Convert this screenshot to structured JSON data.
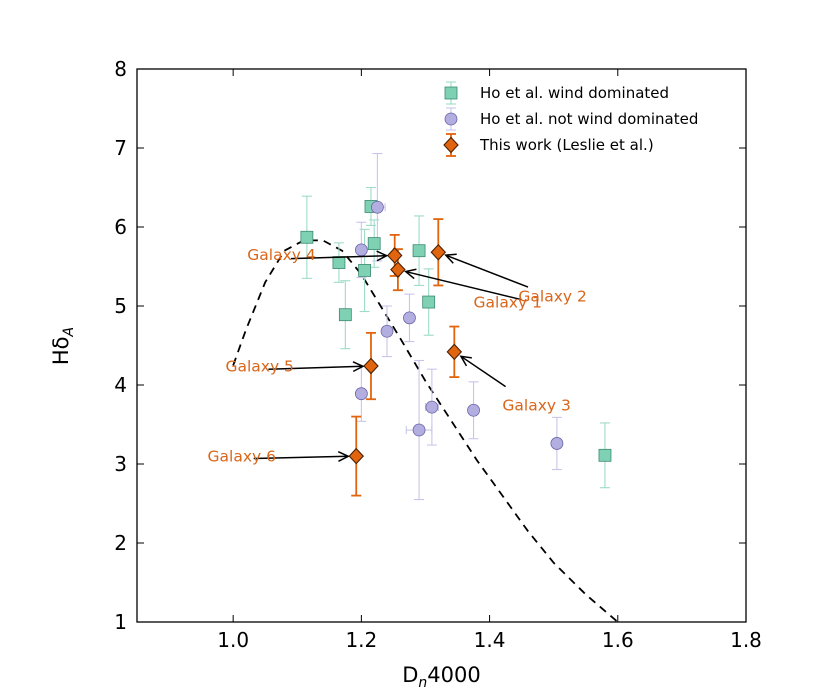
{
  "chart_data": {
    "type": "scatter",
    "xlabel_main": "D",
    "xlabel_sub": "n",
    "xlabel_tail": "4000",
    "ylabel_main": "Hδ",
    "ylabel_sub": "A",
    "xlim": [
      0.85,
      1.8
    ],
    "ylim": [
      1,
      8
    ],
    "xticks": [
      1.0,
      1.2,
      1.4,
      1.6,
      1.8
    ],
    "xtick_labels": [
      "1.0",
      "1.2",
      "1.4",
      "1.6",
      "1.8"
    ],
    "yticks": [
      1,
      2,
      3,
      4,
      5,
      6,
      7,
      8
    ],
    "ytick_labels": [
      "1",
      "2",
      "3",
      "4",
      "5",
      "6",
      "7",
      "8"
    ],
    "legend_position": "top-right",
    "colors": {
      "wind": "#7fd1b3",
      "wind_edge": "#3d8a72",
      "wind_err": "#9ddcc6",
      "notwind": "#b3aee0",
      "notwind_edge": "#6a63a8",
      "notwind_err": "#c9c5ea",
      "thiswork": "#e1650f",
      "thiswork_edge": "#4a1f00",
      "annotation": "#d9661a",
      "curve": "#000000"
    },
    "series": [
      {
        "name": "Ho et al. wind dominated",
        "marker": "square",
        "points": [
          {
            "x": 1.115,
            "y": 5.87,
            "yerr": 0.52
          },
          {
            "x": 1.165,
            "y": 5.55,
            "yerr": 0.25
          },
          {
            "x": 1.175,
            "y": 4.89,
            "yerr": 0.43
          },
          {
            "x": 1.205,
            "y": 5.45,
            "yerr": 0.52
          },
          {
            "x": 1.215,
            "y": 6.26,
            "yerr": 0.24
          },
          {
            "x": 1.22,
            "y": 5.79,
            "yerr": 0.3
          },
          {
            "x": 1.29,
            "y": 5.7,
            "yerr": 0.44
          },
          {
            "x": 1.305,
            "y": 5.05,
            "yerr": 0.42
          },
          {
            "x": 1.58,
            "y": 3.11,
            "yerr": 0.41
          }
        ]
      },
      {
        "name": "Ho et al. not wind dominated",
        "marker": "circle",
        "points": [
          {
            "x": 1.2,
            "y": 3.89,
            "yerr": 0.35
          },
          {
            "x": 1.2,
            "y": 5.71,
            "yerr": 0.35
          },
          {
            "x": 1.225,
            "y": 6.25,
            "yerr": 0.68,
            "xerr": 0.012
          },
          {
            "x": 1.24,
            "y": 4.68,
            "yerr": 0.32
          },
          {
            "x": 1.275,
            "y": 4.85,
            "yerr": 0.3
          },
          {
            "x": 1.29,
            "y": 3.43,
            "yerr": 0.88,
            "xerr": 0.02
          },
          {
            "x": 1.31,
            "y": 3.72,
            "yerr": 0.48,
            "xerr": 0.01
          },
          {
            "x": 1.375,
            "y": 3.68,
            "yerr": 0.36
          },
          {
            "x": 1.505,
            "y": 3.26,
            "yerr": 0.33
          }
        ]
      },
      {
        "name": "This work (Leslie et al.)",
        "marker": "diamond",
        "points": [
          {
            "x": 1.252,
            "y": 5.64,
            "yerr": 0.26
          },
          {
            "x": 1.32,
            "y": 5.68,
            "yerr": 0.42
          },
          {
            "x": 1.257,
            "y": 5.46,
            "yerr": 0.26
          },
          {
            "x": 1.345,
            "y": 4.42,
            "yerr": 0.32
          },
          {
            "x": 1.215,
            "y": 4.24,
            "yerr": 0.42
          },
          {
            "x": 1.192,
            "y": 3.1,
            "yerr": 0.5
          }
        ]
      }
    ],
    "model_curve": {
      "style": "dashed",
      "x": [
        1.0,
        1.02,
        1.05,
        1.08,
        1.11,
        1.14,
        1.17,
        1.2,
        1.23,
        1.26,
        1.3,
        1.34,
        1.38,
        1.42,
        1.46,
        1.5,
        1.55,
        1.6
      ],
      "y": [
        4.25,
        4.7,
        5.3,
        5.7,
        5.83,
        5.83,
        5.7,
        5.4,
        5.0,
        4.6,
        4.05,
        3.55,
        3.05,
        2.6,
        2.15,
        1.75,
        1.35,
        1.0
      ]
    },
    "annotations": [
      {
        "label": "Galaxy 1",
        "text_x": 1.375,
        "text_y": 4.98,
        "arrow_from_x": 1.45,
        "arrow_from_y": 5.08,
        "arrow_to_x": 1.257,
        "arrow_to_y": 5.46
      },
      {
        "label": "Galaxy 2",
        "text_x": 1.445,
        "text_y": 5.06,
        "arrow_from_x": 1.46,
        "arrow_from_y": 5.24,
        "arrow_to_x": 1.32,
        "arrow_to_y": 5.68
      },
      {
        "label": "Galaxy 3",
        "text_x": 1.42,
        "text_y": 3.68,
        "arrow_from_x": 1.425,
        "arrow_from_y": 3.98,
        "arrow_to_x": 1.345,
        "arrow_to_y": 4.42
      },
      {
        "label": "Galaxy 4",
        "text_x": 1.022,
        "text_y": 5.58,
        "arrow_from_x": 1.09,
        "arrow_from_y": 5.6,
        "arrow_to_x": 1.252,
        "arrow_to_y": 5.64
      },
      {
        "label": "Galaxy 5",
        "text_x": 0.988,
        "text_y": 4.17,
        "arrow_from_x": 1.055,
        "arrow_from_y": 4.2,
        "arrow_to_x": 1.215,
        "arrow_to_y": 4.24
      },
      {
        "label": "Galaxy 6",
        "text_x": 0.96,
        "text_y": 3.03,
        "arrow_from_x": 1.032,
        "arrow_from_y": 3.07,
        "arrow_to_x": 1.192,
        "arrow_to_y": 3.1
      }
    ]
  }
}
